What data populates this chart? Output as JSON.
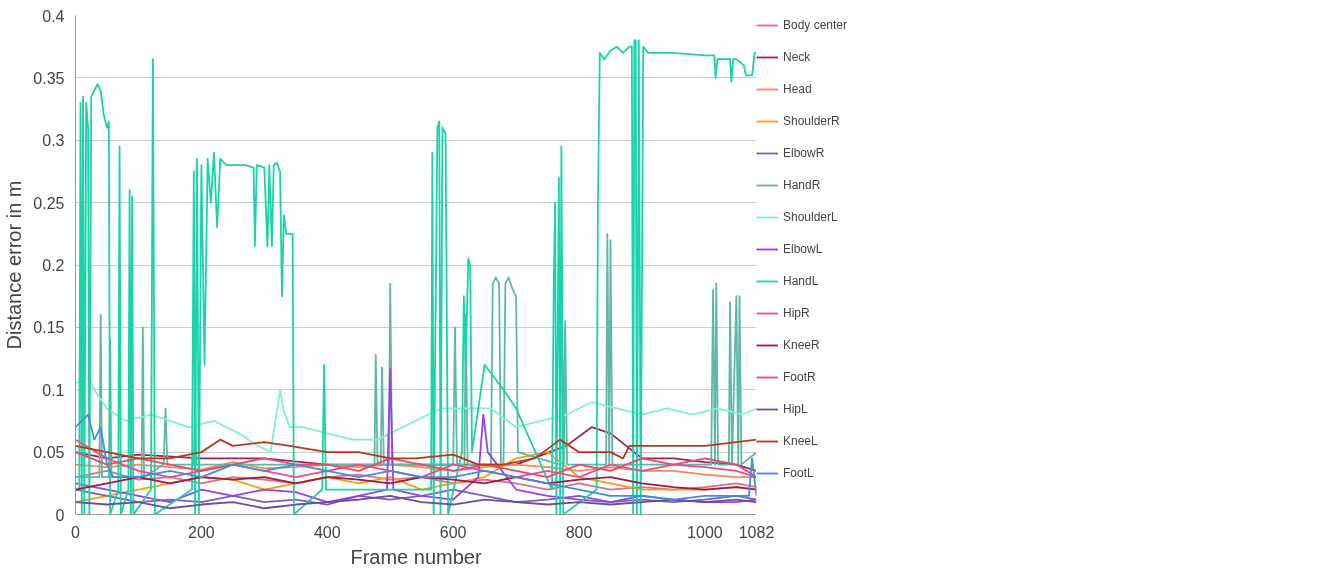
{
  "chart_data": {
    "type": "line",
    "xlabel": "Frame number",
    "ylabel": "Distance error in m",
    "xlim": [
      0,
      1082
    ],
    "ylim": [
      0,
      0.4
    ],
    "xticks": [
      0,
      200,
      400,
      600,
      800,
      1000,
      1082
    ],
    "yticks": [
      0,
      0.05,
      0.1,
      0.15,
      0.2,
      0.25,
      0.3,
      0.35,
      0.4
    ],
    "grid": "y",
    "legend": "right",
    "series": [
      {
        "name": "Body center",
        "color": "#d9708c",
        "x": [
          0,
          50,
          100,
          150,
          200,
          250,
          300,
          350,
          400,
          450,
          500,
          550,
          600,
          650,
          700,
          750,
          800,
          850,
          900,
          950,
          1000,
          1050,
          1082
        ],
        "values": [
          0.03,
          0.035,
          0.028,
          0.03,
          0.025,
          0.03,
          0.028,
          0.025,
          0.03,
          0.032,
          0.028,
          0.03,
          0.025,
          0.028,
          0.025,
          0.02,
          0.025,
          0.02,
          0.022,
          0.02,
          0.022,
          0.025,
          0.022
        ]
      },
      {
        "name": "Neck",
        "color": "#a0205a",
        "x": [
          0,
          50,
          100,
          200,
          300,
          400,
          500,
          600,
          700,
          780,
          820,
          850,
          900,
          950,
          1000,
          1050,
          1082
        ],
        "values": [
          0.05,
          0.045,
          0.048,
          0.045,
          0.045,
          0.04,
          0.04,
          0.04,
          0.04,
          0.055,
          0.07,
          0.065,
          0.045,
          0.045,
          0.042,
          0.04,
          0.035
        ]
      },
      {
        "name": "Head",
        "color": "#f08a5c",
        "x": [
          0,
          50,
          100,
          150,
          200,
          250,
          300,
          350,
          400,
          450,
          500,
          550,
          600,
          650,
          700,
          750,
          800,
          850,
          900,
          950,
          1000,
          1050,
          1082
        ],
        "values": [
          0.04,
          0.038,
          0.04,
          0.038,
          0.036,
          0.042,
          0.037,
          0.038,
          0.04,
          0.038,
          0.04,
          0.038,
          0.035,
          0.038,
          0.04,
          0.038,
          0.035,
          0.038,
          0.035,
          0.035,
          0.032,
          0.03,
          0.03
        ]
      },
      {
        "name": "ShoulderR",
        "color": "#f5a00f",
        "x": [
          0,
          50,
          100,
          150,
          200,
          250,
          300,
          350,
          400,
          450,
          500,
          550,
          600,
          650,
          700,
          750,
          800,
          850,
          900,
          950,
          1000,
          1050,
          1082
        ],
        "values": [
          0.01,
          0.015,
          0.02,
          0.025,
          0.03,
          0.028,
          0.02,
          0.025,
          0.03,
          0.025,
          0.03,
          0.02,
          0.025,
          0.03,
          0.045,
          0.05,
          0.03,
          0.025,
          0.02,
          0.02,
          0.02,
          0.022,
          0.02
        ]
      },
      {
        "name": "ElbowR",
        "color": "#7b5fb5",
        "x": [
          0,
          50,
          100,
          150,
          200,
          250,
          300,
          350,
          400,
          450,
          500,
          550,
          600,
          650,
          700,
          750,
          800,
          850,
          900,
          950,
          1000,
          1050,
          1082
        ],
        "values": [
          0.02,
          0.015,
          0.01,
          0.012,
          0.01,
          0.015,
          0.01,
          0.012,
          0.008,
          0.015,
          0.012,
          0.015,
          0.02,
          0.015,
          0.01,
          0.012,
          0.015,
          0.01,
          0.012,
          0.01,
          0.012,
          0.015,
          0.012
        ]
      },
      {
        "name": "HandR",
        "color": "#5fb8a6",
        "x": [
          0,
          38,
          40,
          42,
          53,
          55,
          57,
          105,
          107,
          109,
          140,
          143,
          146,
          188,
          190,
          192,
          475,
          477,
          480,
          485,
          487,
          490,
          498,
          500,
          503,
          600,
          603,
          606,
          618,
          620,
          623,
          660,
          663,
          668,
          673,
          676,
          680,
          683,
          688,
          695,
          700,
          703,
          770,
          772,
          776,
          778,
          781,
          843,
          845,
          848,
          850,
          853,
          1010,
          1013,
          1016,
          1018,
          1021,
          1038,
          1040,
          1043,
          1050,
          1053,
          1055,
          1058,
          1082
        ],
        "values": [
          0.03,
          0.03,
          0.16,
          0.03,
          0.03,
          0.14,
          0.03,
          0.03,
          0.15,
          0.03,
          0.04,
          0.085,
          0.04,
          0.04,
          0.09,
          0.04,
          0.04,
          0.128,
          0.04,
          0.04,
          0.118,
          0.04,
          0.04,
          0.185,
          0.04,
          0.04,
          0.15,
          0.04,
          0.04,
          0.16,
          0.04,
          0.04,
          0.185,
          0.19,
          0.185,
          0.04,
          0.04,
          0.185,
          0.19,
          0.18,
          0.175,
          0.05,
          0.04,
          0.2,
          0.04,
          0.155,
          0.04,
          0.04,
          0.225,
          0.04,
          0.22,
          0.04,
          0.04,
          0.18,
          0.04,
          0.185,
          0.04,
          0.04,
          0.17,
          0.04,
          0.175,
          0.04,
          0.175,
          0.04,
          0.05
        ]
      },
      {
        "name": "ShoulderL",
        "color": "#80f0d4",
        "x": [
          0,
          20,
          30,
          50,
          80,
          120,
          150,
          180,
          220,
          260,
          290,
          310,
          325,
          330,
          340,
          360,
          400,
          440,
          480,
          500,
          540,
          580,
          620,
          660,
          700,
          740,
          780,
          820,
          860,
          900,
          940,
          980,
          1020,
          1060,
          1082
        ],
        "values": [
          0.105,
          0.11,
          0.1,
          0.085,
          0.075,
          0.08,
          0.075,
          0.07,
          0.075,
          0.065,
          0.055,
          0.05,
          0.1,
          0.085,
          0.07,
          0.07,
          0.065,
          0.06,
          0.06,
          0.065,
          0.075,
          0.085,
          0.085,
          0.085,
          0.07,
          0.075,
          0.08,
          0.09,
          0.085,
          0.08,
          0.085,
          0.08,
          0.085,
          0.08,
          0.085
        ]
      },
      {
        "name": "ElbowL",
        "color": "#9b40e8",
        "x": [
          0,
          50,
          100,
          150,
          200,
          250,
          300,
          350,
          400,
          450,
          495,
          500,
          505,
          550,
          600,
          640,
          648,
          655,
          700,
          750,
          800,
          850,
          900,
          950,
          1000,
          1050,
          1082
        ],
        "values": [
          0.025,
          0.02,
          0.015,
          0.01,
          0.02,
          0.015,
          0.02,
          0.018,
          0.01,
          0.015,
          0.02,
          0.117,
          0.02,
          0.015,
          0.012,
          0.03,
          0.08,
          0.05,
          0.02,
          0.015,
          0.012,
          0.01,
          0.015,
          0.012,
          0.01,
          0.01,
          0.012
        ]
      },
      {
        "name": "HandL",
        "color": "#19d3ab",
        "x": [
          0,
          6,
          8,
          10,
          12,
          14,
          17,
          20,
          22,
          25,
          30,
          35,
          40,
          45,
          50,
          53,
          55,
          68,
          70,
          72,
          84,
          86,
          88,
          90,
          92,
          120,
          123,
          126,
          185,
          188,
          190,
          193,
          196,
          200,
          205,
          210,
          215,
          220,
          225,
          230,
          240,
          270,
          283,
          285,
          288,
          300,
          305,
          308,
          312,
          315,
          320,
          325,
          328,
          331,
          335,
          345,
          347,
          392,
          395,
          398,
          565,
          567,
          569,
          575,
          578,
          580,
          583,
          588,
          592,
          614,
          617,
          620,
          624,
          627,
          630,
          650,
          680,
          700,
          757,
          760,
          762,
          764,
          768,
          770,
          772,
          775,
          828,
          830,
          833,
          840,
          850,
          860,
          870,
          880,
          884,
          886,
          888,
          890,
          892,
          895,
          898,
          902,
          910,
          950,
          1000,
          1015,
          1017,
          1020,
          1040,
          1042,
          1045,
          1050,
          1062,
          1065,
          1075,
          1079,
          1082
        ],
        "values": [
          0.02,
          0.02,
          0.33,
          0.0,
          0.335,
          0.0,
          0.33,
          0.31,
          0.0,
          0.335,
          0.34,
          0.345,
          0.34,
          0.32,
          0.31,
          0.315,
          0.0,
          0.02,
          0.295,
          0.0,
          0.02,
          0.26,
          0.0,
          0.255,
          0.0,
          0.02,
          0.365,
          0.0,
          0.02,
          0.275,
          0.0,
          0.285,
          0.0,
          0.28,
          0.12,
          0.285,
          0.25,
          0.29,
          0.23,
          0.285,
          0.28,
          0.28,
          0.278,
          0.215,
          0.28,
          0.278,
          0.215,
          0.28,
          0.215,
          0.28,
          0.282,
          0.275,
          0.175,
          0.24,
          0.225,
          0.225,
          0.0,
          0.02,
          0.12,
          0.02,
          0.02,
          0.29,
          0.0,
          0.31,
          0.315,
          0.0,
          0.31,
          0.305,
          0.0,
          0.05,
          0.175,
          0.12,
          0.205,
          0.2,
          0.05,
          0.12,
          0.1,
          0.085,
          0.02,
          0.19,
          0.25,
          0.0,
          0.27,
          0.0,
          0.295,
          0.0,
          0.02,
          0.245,
          0.37,
          0.365,
          0.372,
          0.375,
          0.37,
          0.375,
          0.375,
          0.0,
          0.38,
          0.38,
          0.0,
          0.38,
          0.0,
          0.375,
          0.37,
          0.37,
          0.368,
          0.368,
          0.35,
          0.365,
          0.365,
          0.347,
          0.365,
          0.365,
          0.36,
          0.352,
          0.352,
          0.37,
          0.37
        ]
      },
      {
        "name": "HipR",
        "color": "#eb4f8a",
        "x": [
          0,
          50,
          100,
          150,
          200,
          250,
          300,
          350,
          400,
          450,
          500,
          550,
          600,
          650,
          700,
          750,
          800,
          850,
          900,
          950,
          1000,
          1050,
          1082
        ],
        "values": [
          0.06,
          0.045,
          0.035,
          0.03,
          0.035,
          0.04,
          0.035,
          0.03,
          0.035,
          0.04,
          0.035,
          0.03,
          0.04,
          0.035,
          0.03,
          0.035,
          0.03,
          0.04,
          0.035,
          0.04,
          0.038,
          0.035,
          0.03
        ]
      },
      {
        "name": "KneeR",
        "color": "#a3174a",
        "x": [
          0,
          50,
          100,
          150,
          200,
          250,
          300,
          350,
          400,
          450,
          500,
          550,
          600,
          650,
          700,
          750,
          800,
          850,
          900,
          950,
          1000,
          1050,
          1082
        ],
        "values": [
          0.02,
          0.025,
          0.03,
          0.025,
          0.03,
          0.028,
          0.03,
          0.025,
          0.03,
          0.028,
          0.025,
          0.03,
          0.028,
          0.025,
          0.03,
          0.025,
          0.028,
          0.03,
          0.025,
          0.022,
          0.02,
          0.022,
          0.02
        ]
      },
      {
        "name": "FootR",
        "color": "#e84a6a",
        "x": [
          0,
          50,
          100,
          150,
          200,
          250,
          300,
          350,
          400,
          450,
          500,
          550,
          600,
          650,
          700,
          750,
          800,
          850,
          900,
          950,
          1000,
          1050,
          1082
        ],
        "values": [
          0.05,
          0.04,
          0.045,
          0.04,
          0.035,
          0.04,
          0.045,
          0.04,
          0.04,
          0.035,
          0.045,
          0.04,
          0.035,
          0.04,
          0.035,
          0.03,
          0.04,
          0.035,
          0.045,
          0.04,
          0.045,
          0.04,
          0.03
        ]
      },
      {
        "name": "HipL",
        "color": "#6a4c9c",
        "x": [
          0,
          50,
          100,
          150,
          200,
          250,
          300,
          350,
          400,
          450,
          500,
          550,
          600,
          650,
          700,
          750,
          800,
          850,
          900,
          950,
          1000,
          1050,
          1082
        ],
        "values": [
          0.01,
          0.008,
          0.01,
          0.005,
          0.008,
          0.01,
          0.005,
          0.008,
          0.01,
          0.012,
          0.015,
          0.01,
          0.008,
          0.012,
          0.01,
          0.008,
          0.01,
          0.008,
          0.01,
          0.012,
          0.01,
          0.012,
          0.01
        ]
      },
      {
        "name": "KneeL",
        "color": "#b33a1e",
        "x": [
          0,
          50,
          100,
          150,
          200,
          230,
          250,
          300,
          340,
          400,
          450,
          500,
          540,
          600,
          640,
          680,
          730,
          770,
          800,
          850,
          870,
          880,
          950,
          1000,
          1050,
          1082
        ],
        "values": [
          0.055,
          0.05,
          0.045,
          0.045,
          0.05,
          0.06,
          0.055,
          0.058,
          0.055,
          0.05,
          0.05,
          0.045,
          0.045,
          0.048,
          0.04,
          0.04,
          0.045,
          0.06,
          0.05,
          0.05,
          0.045,
          0.055,
          0.055,
          0.055,
          0.058,
          0.06
        ]
      },
      {
        "name": "FootL",
        "color": "#3f8fdb",
        "x": [
          0,
          10,
          20,
          30,
          40,
          50,
          60,
          100,
          150,
          200,
          250,
          300,
          350,
          400,
          450,
          500,
          550,
          600,
          650,
          700,
          750,
          800,
          850,
          900,
          950,
          1000,
          1050,
          1070,
          1075,
          1082
        ],
        "values": [
          0.07,
          0.075,
          0.08,
          0.06,
          0.07,
          0.04,
          0.03,
          0.03,
          0.035,
          0.03,
          0.04,
          0.035,
          0.04,
          0.035,
          0.03,
          0.035,
          0.03,
          0.03,
          0.035,
          0.03,
          0.025,
          0.02,
          0.015,
          0.015,
          0.012,
          0.015,
          0.015,
          0.015,
          0.045,
          0.015
        ]
      }
    ]
  }
}
